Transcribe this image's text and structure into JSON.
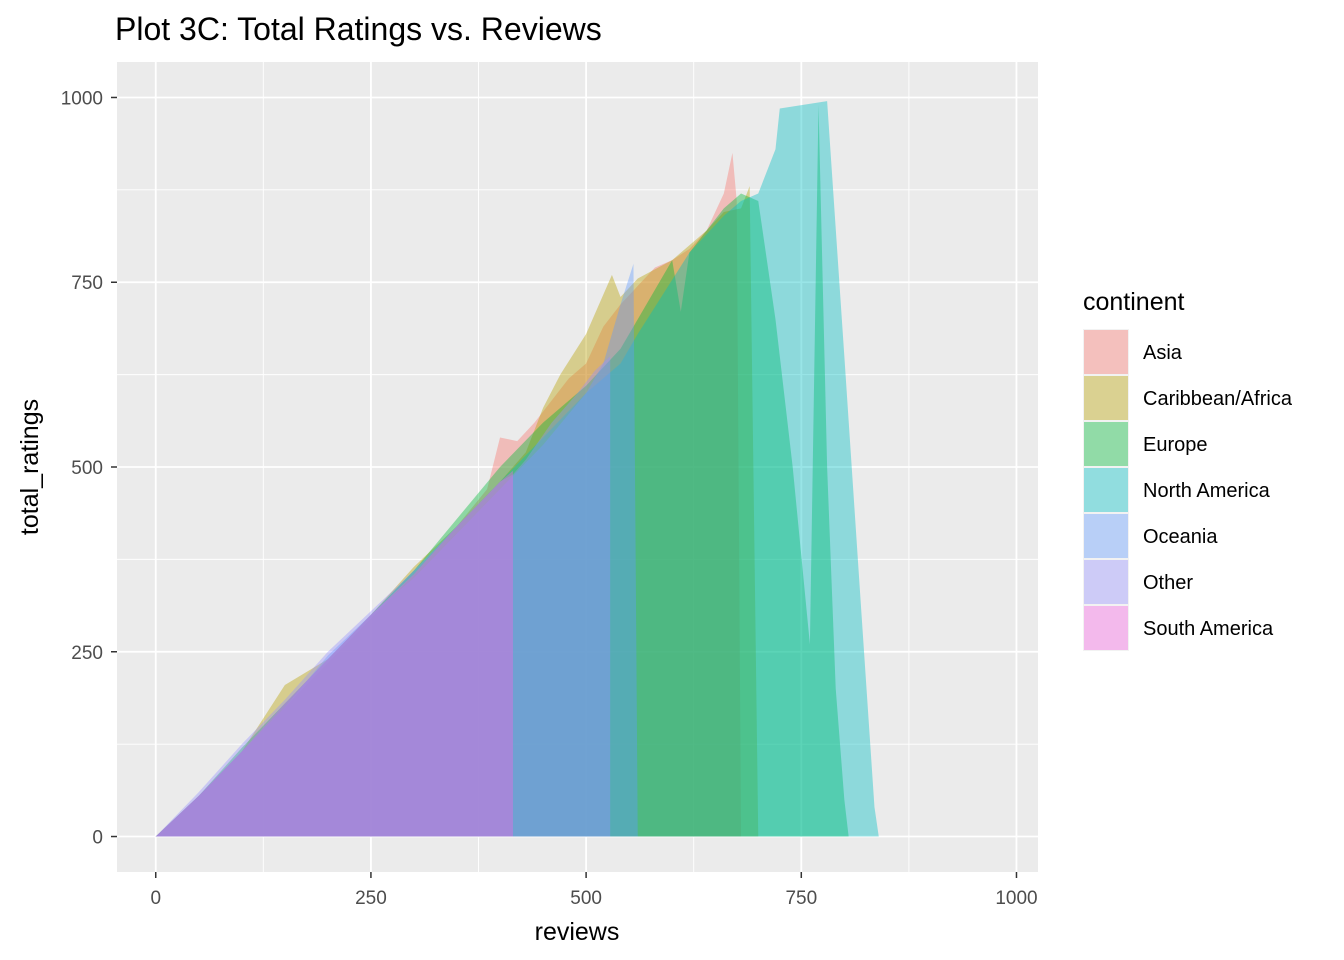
{
  "chart_data": {
    "type": "area",
    "title": "Plot 3C: Total Ratings vs. Reviews",
    "xlabel": "reviews",
    "ylabel": "total_ratings",
    "xlim": [
      -45,
      1025
    ],
    "ylim": [
      -48,
      1048
    ],
    "x_ticks": [
      0,
      250,
      500,
      750,
      1000
    ],
    "x_tick_labels": [
      "0",
      "250",
      "500",
      "750",
      "1000"
    ],
    "y_ticks": [
      0,
      250,
      500,
      750,
      1000
    ],
    "y_tick_labels": [
      "0",
      "250",
      "500",
      "750",
      "1000"
    ],
    "grid": true,
    "panel_background": "#ebebeb",
    "fill_opacity": 0.4,
    "legend": {
      "title": "continent",
      "position": "right"
    },
    "series": [
      {
        "name": "Asia",
        "color": "#F8766D",
        "x": [
          0,
          50,
          100,
          150,
          200,
          250,
          300,
          350,
          385,
          400,
          420,
          440,
          460,
          480,
          500,
          520,
          540,
          560,
          580,
          600,
          620,
          640,
          660,
          670,
          675,
          680,
          690,
          695,
          890,
          905
        ],
        "y": [
          0,
          55,
          115,
          175,
          235,
          295,
          355,
          420,
          470,
          540,
          535,
          560,
          590,
          620,
          640,
          690,
          720,
          745,
          770,
          780,
          795,
          820,
          870,
          925,
          860,
          0,
          0,
          0,
          0,
          0
        ]
      },
      {
        "name": "Caribbean/Africa",
        "color": "#B79F00",
        "x": [
          0,
          50,
          100,
          150,
          200,
          250,
          300,
          350,
          400,
          430,
          450,
          470,
          500,
          530,
          540,
          560,
          600,
          640,
          660,
          680,
          690,
          700
        ],
        "y": [
          0,
          55,
          115,
          205,
          240,
          300,
          365,
          420,
          480,
          520,
          580,
          625,
          680,
          760,
          730,
          755,
          780,
          820,
          845,
          850,
          880,
          0
        ]
      },
      {
        "name": "Europe",
        "color": "#00BA38",
        "x": [
          0,
          50,
          100,
          150,
          200,
          250,
          300,
          350,
          400,
          450,
          500,
          540,
          560,
          600,
          610,
          620,
          640,
          660,
          680,
          700,
          720,
          740,
          760,
          770,
          780,
          790,
          800,
          805
        ],
        "y": [
          0,
          55,
          120,
          180,
          240,
          300,
          360,
          430,
          500,
          560,
          610,
          660,
          700,
          780,
          710,
          790,
          820,
          850,
          870,
          860,
          700,
          500,
          260,
          990,
          500,
          200,
          50,
          0
        ]
      },
      {
        "name": "North America",
        "color": "#00BFC4",
        "x": [
          0,
          50,
          100,
          150,
          200,
          250,
          300,
          350,
          400,
          450,
          500,
          540,
          560,
          620,
          660,
          680,
          700,
          720,
          725,
          780,
          800,
          820,
          835,
          840,
          960,
          970
        ],
        "y": [
          0,
          55,
          115,
          180,
          240,
          300,
          360,
          420,
          480,
          540,
          600,
          640,
          680,
          790,
          840,
          860,
          870,
          930,
          985,
          995,
          650,
          300,
          40,
          0,
          0,
          0
        ]
      },
      {
        "name": "Oceania",
        "color": "#619CFF",
        "x": [
          0,
          50,
          100,
          150,
          200,
          250,
          300,
          350,
          400,
          450,
          500,
          520,
          540,
          555,
          560
        ],
        "y": [
          0,
          55,
          115,
          175,
          245,
          300,
          350,
          410,
          470,
          530,
          600,
          640,
          720,
          775,
          0
        ]
      },
      {
        "name": "Other",
        "color": "#9590FF",
        "x": [
          0,
          50,
          100,
          150,
          200,
          250,
          300,
          350,
          400,
          415,
          430,
          460,
          490,
          510,
          528
        ],
        "y": [
          0,
          60,
          125,
          185,
          250,
          305,
          360,
          420,
          480,
          490,
          510,
          560,
          600,
          630,
          650
        ]
      },
      {
        "name": "South America",
        "color": "#F564E3",
        "x": [
          0,
          50,
          100,
          150,
          200,
          250,
          300,
          350,
          400,
          415
        ],
        "y": [
          0,
          55,
          115,
          180,
          240,
          300,
          355,
          420,
          480,
          495
        ]
      }
    ]
  }
}
